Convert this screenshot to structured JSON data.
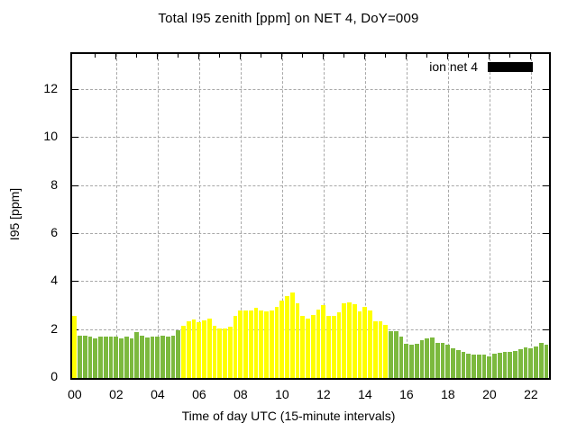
{
  "title": "Total I95 zenith [ppm] on NET 4, DoY=009",
  "legend": {
    "label": "ion net 4",
    "swatch_color": "#000000"
  },
  "chart_data": {
    "type": "bar",
    "title": "Total I95 zenith [ppm] on NET 4, DoY=009",
    "xlabel": "Time of day UTC (15-minute intervals)",
    "ylabel": "I95 [ppm]",
    "x_start": "00:00",
    "x_interval_minutes": 15,
    "x_tick_labels": [
      "00",
      "02",
      "04",
      "06",
      "08",
      "10",
      "12",
      "14",
      "16",
      "18",
      "20",
      "22"
    ],
    "y_tick_labels": [
      "0",
      "2",
      "4",
      "6",
      "8",
      "10",
      "12"
    ],
    "y_ticks": [
      0,
      2,
      4,
      6,
      8,
      10,
      12
    ],
    "ylim": [
      0,
      13.5
    ],
    "grid": true,
    "legend_position": "top-right-inside",
    "bar_palette": {
      "g": "#7cb93e",
      "y": "#ffff00"
    },
    "grid_color": "#a8a8a8",
    "frame_color": "#000000",
    "values": [
      2.6,
      1.78,
      1.75,
      1.72,
      1.66,
      1.71,
      1.74,
      1.74,
      1.72,
      1.64,
      1.71,
      1.66,
      1.93,
      1.77,
      1.69,
      1.71,
      1.72,
      1.78,
      1.73,
      1.75,
      1.98,
      2.17,
      2.36,
      2.44,
      2.32,
      2.4,
      2.47,
      2.17,
      2.05,
      2.06,
      2.12,
      2.57,
      2.82,
      2.82,
      2.82,
      2.94,
      2.82,
      2.77,
      2.8,
      2.98,
      3.23,
      3.41,
      3.56,
      3.1,
      2.57,
      2.46,
      2.63,
      2.85,
      3.04,
      2.6,
      2.6,
      2.73,
      3.1,
      3.14,
      3.07,
      2.77,
      2.98,
      2.82,
      2.36,
      2.37,
      2.2,
      1.95,
      1.96,
      1.72,
      1.43,
      1.38,
      1.44,
      1.56,
      1.65,
      1.7,
      1.45,
      1.46,
      1.39,
      1.25,
      1.16,
      1.08,
      1.01,
      0.98,
      0.98,
      0.98,
      0.9,
      1.01,
      1.05,
      1.07,
      1.07,
      1.13,
      1.2,
      1.27,
      1.22,
      1.32,
      1.45,
      1.38
    ],
    "colors": [
      "y",
      "g",
      "g",
      "g",
      "g",
      "g",
      "g",
      "g",
      "g",
      "g",
      "g",
      "g",
      "g",
      "g",
      "g",
      "g",
      "g",
      "g",
      "g",
      "g",
      "g",
      "y",
      "y",
      "y",
      "y",
      "y",
      "y",
      "y",
      "y",
      "y",
      "y",
      "y",
      "y",
      "y",
      "y",
      "y",
      "y",
      "y",
      "y",
      "y",
      "y",
      "y",
      "y",
      "y",
      "y",
      "y",
      "y",
      "y",
      "y",
      "y",
      "y",
      "y",
      "y",
      "y",
      "y",
      "y",
      "y",
      "y",
      "y",
      "y",
      "y",
      "g",
      "g",
      "g",
      "g",
      "g",
      "g",
      "g",
      "g",
      "g",
      "g",
      "g",
      "g",
      "g",
      "g",
      "g",
      "g",
      "g",
      "g",
      "g",
      "g",
      "g",
      "g",
      "g",
      "g",
      "g",
      "g",
      "g",
      "g",
      "g",
      "g",
      "g"
    ]
  }
}
